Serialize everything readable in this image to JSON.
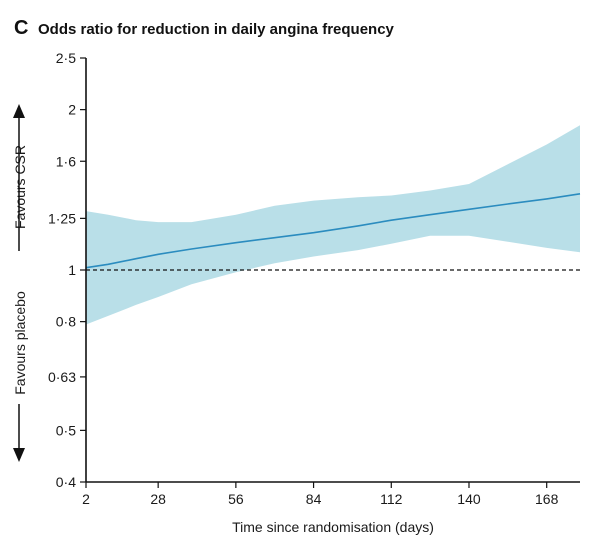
{
  "chart_data": {
    "type": "line",
    "panel_letter": "C",
    "title": "Odds ratio for reduction in daily angina frequency",
    "xlabel": "Time since randomisation (days)",
    "ylabel": "",
    "y_scale": "log",
    "xlim": [
      2,
      180
    ],
    "ylim": [
      0.4,
      2.5
    ],
    "x_ticks": [
      2,
      28,
      56,
      84,
      112,
      140,
      168
    ],
    "x_tick_labels": [
      "2",
      "28",
      "56",
      "84",
      "112",
      "140",
      "168"
    ],
    "y_ticks": [
      0.4,
      0.5,
      0.63,
      0.8,
      1,
      1.25,
      1.6,
      2,
      2.5
    ],
    "y_tick_labels": [
      "0·4",
      "0·5",
      "0·63",
      "0·8",
      "1",
      "1·25",
      "1·6",
      "2",
      "2·5"
    ],
    "reference_line": {
      "y": 1,
      "style": "dashed"
    },
    "side_labels": {
      "upper": "Favours CSR",
      "lower": "Favours placebo"
    },
    "colors": {
      "line": "#2b8cbf",
      "band": "#b9dfe8",
      "axis": "#111111"
    },
    "series": [
      {
        "x": [
          2,
          10,
          20,
          28,
          40,
          56,
          70,
          84,
          100,
          112,
          126,
          140,
          154,
          168,
          180
        ],
        "estimate": [
          1.01,
          1.025,
          1.05,
          1.07,
          1.095,
          1.125,
          1.15,
          1.175,
          1.21,
          1.24,
          1.27,
          1.3,
          1.33,
          1.36,
          1.39
        ],
        "upper": [
          1.29,
          1.27,
          1.24,
          1.23,
          1.23,
          1.27,
          1.32,
          1.35,
          1.37,
          1.38,
          1.41,
          1.45,
          1.58,
          1.72,
          1.87
        ],
        "lower": [
          0.79,
          0.82,
          0.86,
          0.89,
          0.94,
          0.99,
          1.03,
          1.06,
          1.09,
          1.12,
          1.16,
          1.16,
          1.13,
          1.1,
          1.08
        ]
      }
    ]
  }
}
